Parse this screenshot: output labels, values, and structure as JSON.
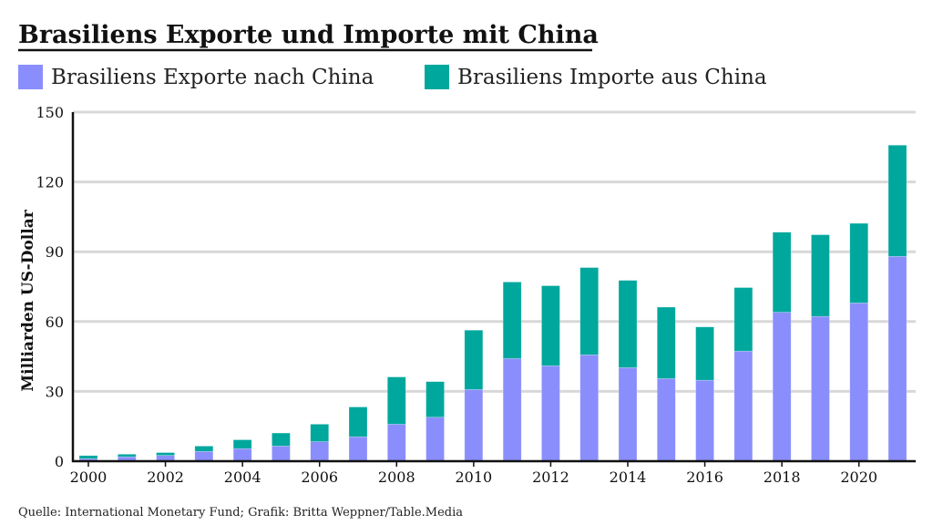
{
  "chart_data": {
    "type": "bar",
    "stacked": true,
    "title": "Brasiliens Exporte und Importe mit China",
    "ylabel": "Milliarden US-Dollar",
    "xlabel": "",
    "ylim": [
      0,
      150
    ],
    "yticks": [
      0,
      30,
      60,
      90,
      120,
      150
    ],
    "grid": true,
    "legend_position": "top-left",
    "categories": [
      2000,
      2001,
      2002,
      2003,
      2004,
      2005,
      2006,
      2007,
      2008,
      2009,
      2010,
      2011,
      2012,
      2013,
      2014,
      2015,
      2016,
      2017,
      2018,
      2019,
      2020,
      2021
    ],
    "xtick_labels": [
      "2000",
      "2002",
      "2004",
      "2006",
      "2008",
      "2010",
      "2012",
      "2014",
      "2016",
      "2018",
      "2020"
    ],
    "series": [
      {
        "name": "Brasiliens Exporte nach China",
        "color": "#8a8efc",
        "values": [
          1.1,
          1.9,
          2.5,
          4.2,
          5.4,
          6.5,
          8.4,
          10.5,
          15.9,
          18.9,
          30.8,
          44.1,
          41.0,
          45.7,
          40.2,
          35.5,
          34.8,
          47.3,
          64.0,
          62.2,
          68.0,
          88.0
        ]
      },
      {
        "name": "Brasiliens Importe aus China",
        "color": "#00a79d",
        "values": [
          1.3,
          1.1,
          1.2,
          2.3,
          3.8,
          5.6,
          7.5,
          12.8,
          20.3,
          15.3,
          25.5,
          32.9,
          34.4,
          37.5,
          37.5,
          30.7,
          22.9,
          27.3,
          34.4,
          35.1,
          34.2,
          47.8
        ]
      }
    ]
  },
  "source": "Quelle: International Monetary Fund; Grafik: Britta Weppner/Table.Media"
}
